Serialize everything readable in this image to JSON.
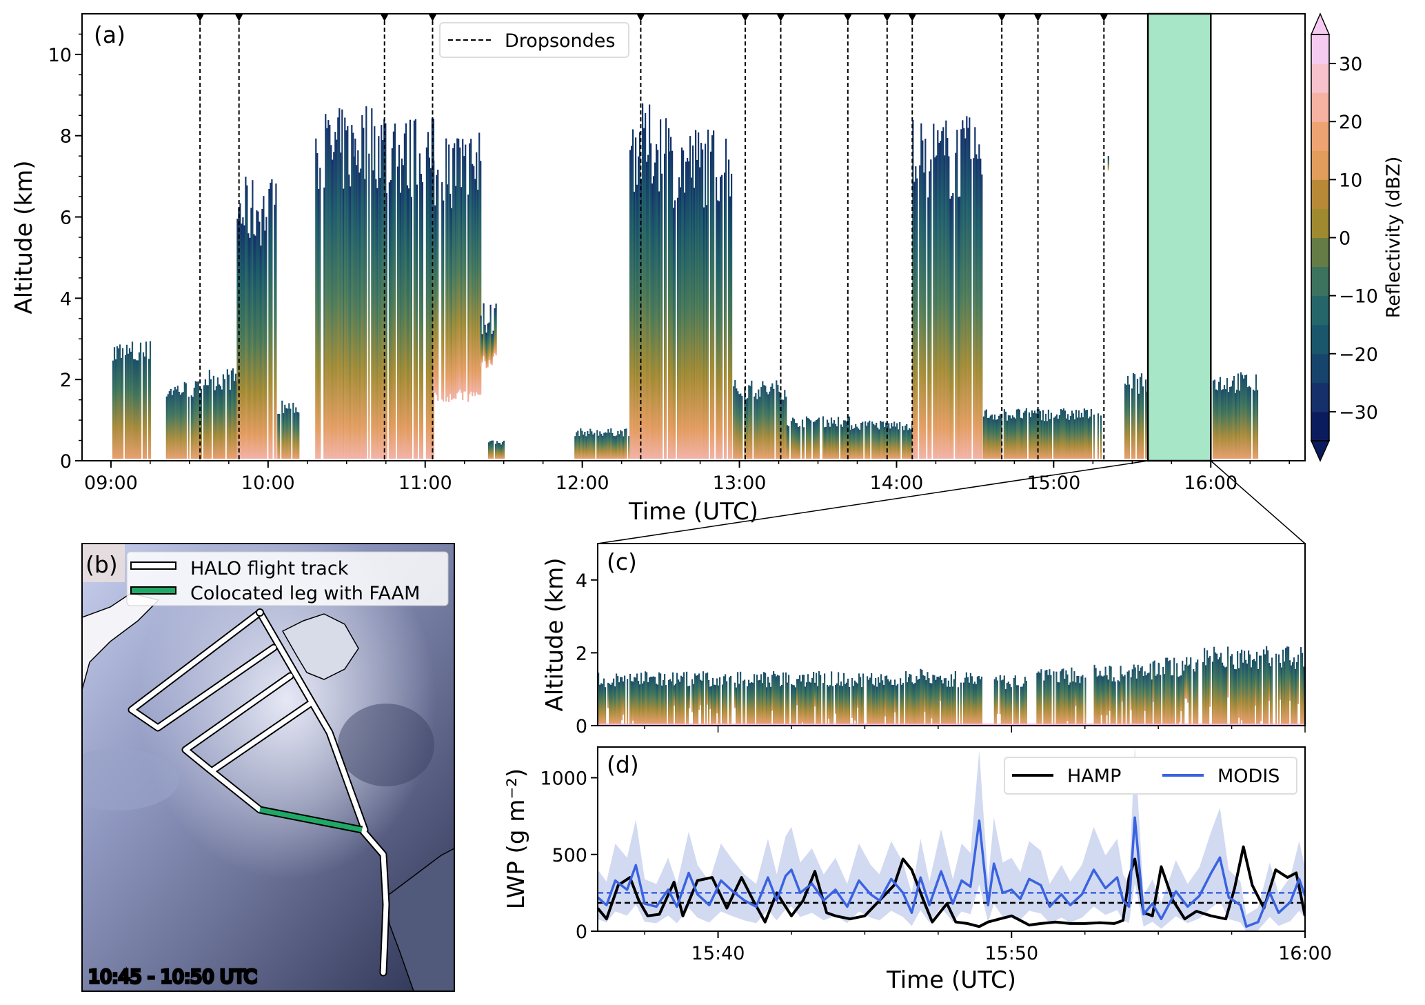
{
  "chart_data": [
    {
      "type": "heatmap",
      "panel": "(a)",
      "xlabel": "Time (UTC)",
      "ylabel": "Altitude (km)",
      "xlim_hours": [
        8.816,
        16.6
      ],
      "ylim": [
        0,
        11
      ],
      "xticks": [
        {
          "v": 9,
          "label": "09:00"
        },
        {
          "v": 10,
          "label": "10:00"
        },
        {
          "v": 11,
          "label": "11:00"
        },
        {
          "v": 12,
          "label": "12:00"
        },
        {
          "v": 13,
          "label": "13:00"
        },
        {
          "v": 14,
          "label": "14:00"
        },
        {
          "v": 15,
          "label": "15:00"
        },
        {
          "v": 16,
          "label": "16:00"
        }
      ],
      "yticks": [
        0,
        2,
        4,
        6,
        8,
        10
      ],
      "legend": {
        "label": "Dropsondes",
        "placement": "top-center"
      },
      "dropsonde_times_hours": [
        9.567,
        9.815,
        10.741,
        11.047,
        12.372,
        13.037,
        13.263,
        13.69,
        13.94,
        14.1,
        14.67,
        14.9,
        15.32
      ],
      "colocated_window_hours": [
        15.6,
        16.0
      ],
      "colocated_color": "#a8e6c8",
      "cloud_segments": [
        [
          9.0,
          9.25,
          3.0,
          0
        ],
        [
          9.35,
          9.57,
          2.0,
          0
        ],
        [
          9.57,
          9.8,
          2.3,
          0
        ],
        [
          9.8,
          10.05,
          7.0,
          0
        ],
        [
          10.05,
          10.2,
          1.5,
          0
        ],
        [
          10.3,
          10.55,
          8.7,
          0
        ],
        [
          10.55,
          10.75,
          8.9,
          0
        ],
        [
          10.75,
          11.05,
          8.5,
          0
        ],
        [
          11.05,
          11.35,
          8.2,
          1.6
        ],
        [
          11.35,
          11.45,
          4.0,
          2.5
        ],
        [
          11.4,
          11.5,
          0.5,
          0
        ],
        [
          11.95,
          12.3,
          0.8,
          0
        ],
        [
          12.3,
          12.55,
          8.8,
          0
        ],
        [
          12.55,
          12.95,
          8.3,
          0
        ],
        [
          12.95,
          13.3,
          2.0,
          0
        ],
        [
          13.3,
          13.7,
          1.1,
          0
        ],
        [
          13.7,
          14.1,
          1.0,
          0
        ],
        [
          14.1,
          14.55,
          8.5,
          0
        ],
        [
          14.55,
          15.3,
          1.3,
          0
        ],
        [
          15.3,
          15.35,
          7.5,
          6.5
        ],
        [
          15.45,
          16.3,
          2.2,
          0
        ]
      ],
      "colorbar": {
        "label": "Reflectivity (dBZ)",
        "range": [
          -35,
          35
        ],
        "ticks": [
          {
            "v": 30,
            "label": "30"
          },
          {
            "v": 20,
            "label": "20"
          },
          {
            "v": 10,
            "label": "10"
          },
          {
            "v": 0,
            "label": "0"
          },
          {
            "v": -10,
            "label": "−10"
          },
          {
            "v": -20,
            "label": "−20"
          },
          {
            "v": -30,
            "label": "−30"
          }
        ],
        "band_colors": [
          "#0b1c5e",
          "#15306b",
          "#16446c",
          "#1a566c",
          "#25666a",
          "#3b735f",
          "#657c46",
          "#a08a30",
          "#b88a38",
          "#e29c5c",
          "#eea472",
          "#f5b2a2",
          "#f8c2cc",
          "#f6cbf2"
        ]
      }
    },
    {
      "type": "heatmap",
      "panel": "(c)",
      "ylabel": "Altitude (km)",
      "xlim_minutes_after_15": [
        35.9,
        60
      ],
      "ylim": [
        0,
        5
      ],
      "yticks": [
        0,
        2,
        4
      ],
      "cloud_segments": [
        [
          35.9,
          46.5,
          1.5
        ],
        [
          46.5,
          47.5,
          1.6
        ],
        [
          47.5,
          49.0,
          1.5
        ],
        [
          49.4,
          50.5,
          1.4
        ],
        [
          50.8,
          52.5,
          1.6
        ],
        [
          52.8,
          54.0,
          1.7
        ],
        [
          54.0,
          55.0,
          1.8
        ],
        [
          55.0,
          56.5,
          1.9
        ],
        [
          56.5,
          60.0,
          2.2
        ]
      ]
    },
    {
      "type": "line",
      "panel": "(d)",
      "xlabel": "Time (UTC)",
      "ylabel": "LWP (g m⁻²)",
      "xlim_minutes_after_15": [
        35.9,
        60
      ],
      "ylim": [
        0,
        1200
      ],
      "xticks": [
        {
          "v": 40,
          "label": "15:40"
        },
        {
          "v": 50,
          "label": "15:50"
        },
        {
          "v": 60,
          "label": "16:00"
        }
      ],
      "yticks": [
        0,
        500,
        1000
      ],
      "legend_placement": "top-right",
      "series": [
        {
          "name": "HAMP",
          "color": "#000000",
          "mean": 185,
          "x": [
            35.9,
            36.2,
            36.6,
            37.0,
            37.3,
            37.6,
            38.0,
            38.5,
            38.8,
            39.3,
            39.8,
            40.3,
            40.8,
            41.2,
            41.6,
            42.0,
            42.5,
            42.9,
            43.3,
            43.7,
            44.0,
            44.5,
            45.0,
            45.5,
            46.0,
            46.3,
            46.6,
            47.0,
            47.3,
            47.8,
            48.1,
            48.5,
            48.9,
            49.2,
            49.6,
            50.0,
            50.2,
            50.6,
            51.0,
            51.5,
            52.0,
            52.5,
            53.0,
            53.5,
            53.8,
            54.0,
            54.2,
            54.5,
            54.8,
            55.1,
            55.5,
            55.9,
            56.3,
            56.8,
            57.3,
            57.6,
            57.9,
            58.2,
            58.6,
            59.0,
            59.4,
            59.7,
            60.0
          ],
          "y": [
            150,
            80,
            300,
            350,
            200,
            100,
            110,
            320,
            100,
            330,
            350,
            150,
            350,
            200,
            60,
            250,
            100,
            200,
            390,
            120,
            100,
            80,
            100,
            200,
            300,
            470,
            400,
            200,
            60,
            180,
            60,
            50,
            30,
            60,
            80,
            100,
            80,
            40,
            50,
            60,
            50,
            50,
            55,
            50,
            70,
            350,
            470,
            120,
            100,
            420,
            200,
            80,
            130,
            100,
            80,
            280,
            550,
            300,
            150,
            400,
            350,
            380,
            100
          ]
        },
        {
          "name": "MODIS",
          "color": "#3a63e0",
          "mean": 250,
          "band_color": "#cdd6f0",
          "x": [
            35.9,
            36.2,
            36.5,
            36.9,
            37.2,
            37.5,
            37.9,
            38.3,
            38.6,
            39.0,
            39.3,
            39.7,
            40.1,
            40.5,
            40.9,
            41.3,
            41.7,
            42.0,
            42.3,
            42.5,
            42.8,
            43.2,
            43.6,
            44.0,
            44.4,
            44.8,
            45.2,
            45.5,
            45.9,
            46.3,
            46.6,
            46.9,
            47.2,
            47.6,
            48.0,
            48.3,
            48.6,
            48.9,
            49.2,
            49.4,
            49.7,
            50.0,
            50.3,
            50.6,
            51.0,
            51.3,
            51.7,
            52.0,
            52.4,
            52.8,
            53.2,
            53.6,
            53.8,
            54.0,
            54.2,
            54.5,
            54.8,
            55.1,
            55.6,
            56.0,
            56.4,
            56.8,
            57.1,
            57.4,
            57.8,
            58.0,
            58.4,
            58.8,
            59.1,
            59.5,
            59.8,
            60.0
          ],
          "y": [
            220,
            170,
            330,
            270,
            430,
            180,
            160,
            270,
            160,
            380,
            240,
            170,
            330,
            260,
            200,
            160,
            350,
            200,
            360,
            400,
            250,
            310,
            200,
            270,
            160,
            330,
            240,
            200,
            340,
            250,
            120,
            350,
            170,
            390,
            180,
            330,
            290,
            720,
            170,
            440,
            250,
            270,
            210,
            340,
            300,
            160,
            240,
            170,
            240,
            400,
            280,
            350,
            200,
            160,
            740,
            110,
            180,
            80,
            260,
            160,
            230,
            380,
            480,
            220,
            170,
            30,
            60,
            250,
            120,
            190,
            340,
            230
          ]
        }
      ]
    }
  ],
  "panel_b": {
    "label": "(b)",
    "legend": [
      "HALO flight track",
      "Colocated leg with FAAM"
    ],
    "colocated_color": "#1fa866",
    "timestamp": "10:45 - 10:50 UTC"
  }
}
